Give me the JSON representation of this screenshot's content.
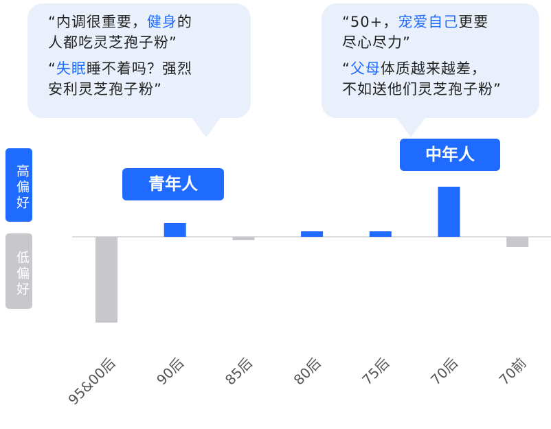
{
  "chart_data": {
    "type": "bar",
    "categories": [
      "95&00后",
      "90后",
      "85后",
      "80后",
      "75后",
      "70后",
      "70前"
    ],
    "values": [
      -125,
      20,
      -5,
      8,
      8,
      73,
      -15
    ],
    "colors": [
      "#c8c8cc",
      "#1f6bff",
      "#c8c8cc",
      "#1f6bff",
      "#1f6bff",
      "#1f6bff",
      "#c8c8cc"
    ],
    "high_label": "高偏好",
    "low_label": "低偏好",
    "groups": [
      "青年人",
      "中年人"
    ],
    "bubbles": [
      {
        "quotes": [
          [
            [
              {
                "text": "“内调很重要，"
              },
              {
                "text": "健身",
                "em": true
              },
              {
                "text": "的"
              }
            ],
            [
              {
                "text": "人都吃灵芝孢子粉”"
              }
            ]
          ],
          [
            [
              {
                "text": "“"
              },
              {
                "text": "失眠",
                "em": true
              },
              {
                "text": "睡不着吗？强烈"
              }
            ],
            [
              {
                "text": "安利灵芝孢子粉”"
              }
            ]
          ]
        ]
      },
      {
        "quotes": [
          [
            [
              {
                "text": "“50+，"
              },
              {
                "text": "宠爱自己",
                "em": true
              },
              {
                "text": "更要"
              }
            ],
            [
              {
                "text": "尽心尽力”"
              }
            ]
          ],
          [
            [
              {
                "text": "“"
              },
              {
                "text": "父母",
                "em": true
              },
              {
                "text": "体质越来越差，"
              }
            ],
            [
              {
                "text": "不如送他们灵芝孢子粉”"
              }
            ]
          ]
        ]
      }
    ]
  }
}
